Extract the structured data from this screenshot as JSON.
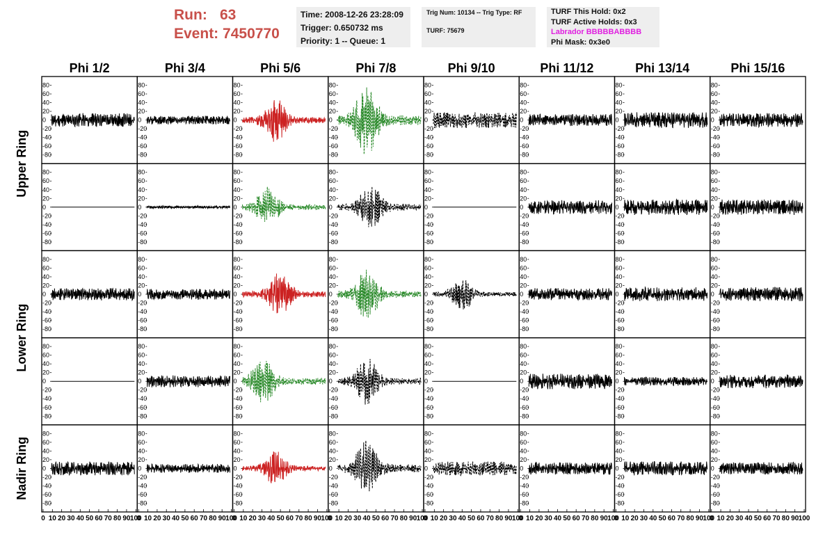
{
  "header": {
    "run_label": "Run:",
    "run_value": "63",
    "event_label": "Event:",
    "event_value": "7450770"
  },
  "info_panel": {
    "time": "Time: 2008-12-26 23:28:09",
    "trigger": "Trigger: 0.650732 ms",
    "priority": "Priority: 1 -- Queue: 1"
  },
  "trig_panel": {
    "trig": "Trig Num: 10134 -- Trig Type: RF",
    "turf": "TURF: 75679"
  },
  "turf_panel": {
    "this_hold": "TURF This Hold: 0x2",
    "active_holds": "TURF Active Holds: 0x3",
    "labrador": "Labrador BBBBBABBBB",
    "phi_mask": "Phi Mask: 0x3e0"
  },
  "colors": {
    "title_red": "#c8504a",
    "red_trace": "#cc2222",
    "green_trace": "#2a8a2a",
    "black_trace": "#000000",
    "labrador_magenta": "#e020e0",
    "panel_bg": "#eeeeee"
  },
  "chart_data": {
    "type": "line",
    "columns": [
      "Phi 1/2",
      "Phi 3/4",
      "Phi 5/6",
      "Phi 7/8",
      "Phi 9/10",
      "Phi 11/12",
      "Phi 13/14",
      "Phi 15/16"
    ],
    "ring_labels": [
      "Upper Ring",
      "Lower Ring",
      "Nadir Ring"
    ],
    "xlim": [
      0,
      100
    ],
    "ylim": [
      -90,
      90
    ],
    "x_ticks": [
      "0",
      "10",
      "20",
      "30",
      "40",
      "50",
      "60",
      "70",
      "80",
      "90",
      "100"
    ],
    "y_ticks": [
      "80",
      "60",
      "40",
      "20",
      "0",
      "-20",
      "-40",
      "-60",
      "-80"
    ],
    "grid": false,
    "rows": [
      {
        "ring": "Upper Ring",
        "panels": [
          {
            "color": "black",
            "style": "solid",
            "amp": 16,
            "shape": "noise",
            "seed": 11
          },
          {
            "color": "black",
            "style": "solid",
            "amp": 10,
            "shape": "noise",
            "seed": 12
          },
          {
            "color": "red",
            "style": "solid",
            "amp": 28,
            "shape": "burst",
            "center": 40,
            "seed": 13
          },
          {
            "color": "green",
            "style": "dashed",
            "amp": 45,
            "shape": "burst",
            "center": 35,
            "seed": 14
          },
          {
            "color": "black",
            "style": "dashed",
            "amp": 18,
            "shape": "noise",
            "seed": 15
          },
          {
            "color": "black",
            "style": "solid",
            "amp": 14,
            "shape": "noise",
            "seed": 16
          },
          {
            "color": "black",
            "style": "solid",
            "amp": 18,
            "shape": "noise",
            "seed": 17
          },
          {
            "color": "black",
            "style": "solid",
            "amp": 16,
            "shape": "noise",
            "seed": 18
          }
        ]
      },
      {
        "ring": "Upper Ring",
        "panels": [
          {
            "color": "black",
            "style": "solid",
            "amp": 0,
            "shape": "flat",
            "seed": 21
          },
          {
            "color": "black",
            "style": "solid",
            "amp": 3,
            "shape": "noise",
            "seed": 22
          },
          {
            "color": "green",
            "style": "dashed",
            "amp": 26,
            "shape": "burst",
            "center": 30,
            "seed": 23
          },
          {
            "color": "black",
            "style": "dashed",
            "amp": 30,
            "shape": "burst",
            "center": 40,
            "seed": 24
          },
          {
            "color": "black",
            "style": "solid",
            "amp": 0,
            "shape": "flat",
            "seed": 25
          },
          {
            "color": "black",
            "style": "solid",
            "amp": 16,
            "shape": "noise",
            "seed": 26
          },
          {
            "color": "black",
            "style": "solid",
            "amp": 18,
            "shape": "noise",
            "seed": 27
          },
          {
            "color": "black",
            "style": "solid",
            "amp": 18,
            "shape": "noise",
            "seed": 28
          }
        ]
      },
      {
        "ring": "Lower Ring",
        "panels": [
          {
            "color": "black",
            "style": "solid",
            "amp": 14,
            "shape": "noise",
            "seed": 31
          },
          {
            "color": "black",
            "style": "solid",
            "amp": 12,
            "shape": "noise",
            "seed": 32
          },
          {
            "color": "red",
            "style": "solid",
            "amp": 28,
            "shape": "burst",
            "center": 45,
            "seed": 33
          },
          {
            "color": "green",
            "style": "dashed",
            "amp": 32,
            "shape": "burst",
            "center": 35,
            "seed": 34
          },
          {
            "color": "black",
            "style": "dashed",
            "amp": 20,
            "shape": "burst",
            "center": 35,
            "seed": 35
          },
          {
            "color": "black",
            "style": "solid",
            "amp": 14,
            "shape": "noise",
            "seed": 36
          },
          {
            "color": "black",
            "style": "solid",
            "amp": 16,
            "shape": "noise",
            "seed": 37
          },
          {
            "color": "black",
            "style": "solid",
            "amp": 16,
            "shape": "noise",
            "seed": 38
          }
        ]
      },
      {
        "ring": "Lower Ring",
        "panels": [
          {
            "color": "black",
            "style": "solid",
            "amp": 0,
            "shape": "flat",
            "seed": 41
          },
          {
            "color": "black",
            "style": "solid",
            "amp": 14,
            "shape": "noise",
            "seed": 42
          },
          {
            "color": "green",
            "style": "dashed",
            "amp": 30,
            "shape": "burst",
            "center": 25,
            "seed": 43
          },
          {
            "color": "black",
            "style": "dashed",
            "amp": 30,
            "shape": "burst",
            "center": 35,
            "seed": 44
          },
          {
            "color": "black",
            "style": "solid",
            "amp": 0,
            "shape": "flat",
            "seed": 45
          },
          {
            "color": "black",
            "style": "solid",
            "amp": 18,
            "shape": "noise",
            "seed": 46
          },
          {
            "color": "black",
            "style": "solid",
            "amp": 10,
            "shape": "noise",
            "seed": 47
          },
          {
            "color": "black",
            "style": "solid",
            "amp": 16,
            "shape": "noise",
            "seed": 48
          }
        ]
      },
      {
        "ring": "Nadir Ring",
        "panels": [
          {
            "color": "black",
            "style": "solid",
            "amp": 16,
            "shape": "noise",
            "seed": 51
          },
          {
            "color": "black",
            "style": "solid",
            "amp": 10,
            "shape": "noise",
            "seed": 52
          },
          {
            "color": "red",
            "style": "solid",
            "amp": 22,
            "shape": "burst",
            "center": 40,
            "seed": 53
          },
          {
            "color": "black",
            "style": "dashed",
            "amp": 36,
            "shape": "burst",
            "center": 35,
            "seed": 54
          },
          {
            "color": "black",
            "style": "dashed",
            "amp": 16,
            "shape": "noise",
            "seed": 55
          },
          {
            "color": "black",
            "style": "solid",
            "amp": 14,
            "shape": "noise",
            "seed": 56
          },
          {
            "color": "black",
            "style": "solid",
            "amp": 16,
            "shape": "noise",
            "seed": 57
          },
          {
            "color": "black",
            "style": "solid",
            "amp": 14,
            "shape": "noise",
            "seed": 58
          }
        ]
      }
    ]
  }
}
